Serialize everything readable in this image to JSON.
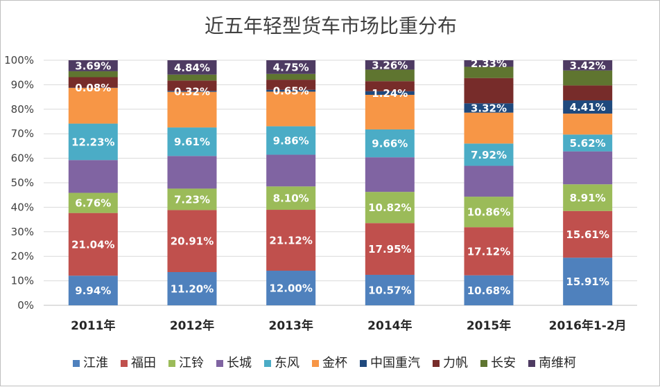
{
  "chart_data": {
    "type": "bar",
    "stacked": true,
    "percent_stacked": true,
    "title": "近五年轻型货车市场比重分布",
    "categories": [
      "2011年",
      "2012年",
      "2013年",
      "2014年",
      "2015年",
      "2016年1-2月"
    ],
    "y_tick_labels": [
      "0%",
      "10%",
      "20%",
      "30%",
      "40%",
      "50%",
      "60%",
      "70%",
      "80%",
      "90%",
      "100%"
    ],
    "ylim": [
      0,
      100
    ],
    "grid": true,
    "legend_position": "bottom",
    "series": [
      {
        "name": "江淮",
        "color": "#4f81bd",
        "values": [
          9.94,
          11.2,
          12.0,
          10.57,
          10.68,
          15.91
        ],
        "labels": [
          "9.94%",
          "11.20%",
          "12.00%",
          "10.57%",
          "10.68%",
          "15.91%"
        ]
      },
      {
        "name": "福田",
        "color": "#c0504d",
        "values": [
          21.04,
          20.91,
          21.12,
          17.95,
          17.12,
          15.61
        ],
        "labels": [
          "21.04%",
          "20.91%",
          "21.12%",
          "17.95%",
          "17.12%",
          "15.61%"
        ]
      },
      {
        "name": "江铃",
        "color": "#9bbb59",
        "values": [
          6.76,
          7.23,
          8.1,
          10.82,
          10.86,
          8.91
        ],
        "labels": [
          "6.76%",
          "7.23%",
          "8.10%",
          "10.82%",
          "10.86%",
          "8.91%"
        ]
      },
      {
        "name": "长城",
        "color": "#8064a2",
        "values": [
          11.0,
          11.0,
          11.0,
          12.0,
          11.0,
          11.0
        ],
        "labels": [
          "",
          "",
          "",
          "",
          "",
          ""
        ]
      },
      {
        "name": "东风",
        "color": "#4bacc6",
        "values": [
          12.23,
          9.61,
          9.86,
          9.66,
          7.92,
          5.62
        ],
        "labels": [
          "12.23%",
          "9.61%",
          "9.86%",
          "9.66%",
          "7.92%",
          "5.62%"
        ]
      },
      {
        "name": "金杯",
        "color": "#f79646",
        "values": [
          12.0,
          12.0,
          12.0,
          12.0,
          11.0,
          7.0
        ],
        "labels": [
          "",
          "",
          "",
          "",
          "",
          ""
        ]
      },
      {
        "name": "中国重汽",
        "color": "#1f497d",
        "values": [
          0.08,
          0.32,
          0.65,
          1.24,
          3.32,
          4.41
        ],
        "labels": [
          "0.08%",
          "0.32%",
          "0.65%",
          "1.24%",
          "3.32%",
          "4.41%"
        ]
      },
      {
        "name": "力帆",
        "color": "#772c2a",
        "values": [
          3.5,
          3.5,
          3.5,
          3.5,
          9.0,
          5.0
        ],
        "labels": [
          "",
          "",
          "",
          "",
          "",
          ""
        ]
      },
      {
        "name": "长安",
        "color": "#5f7530",
        "values": [
          2.0,
          2.0,
          2.0,
          4.0,
          4.0,
          5.0
        ],
        "labels": [
          "",
          "",
          "",
          "",
          "",
          ""
        ]
      },
      {
        "name": "南维柯",
        "color": "#4e3b62",
        "values": [
          3.69,
          4.84,
          4.75,
          3.26,
          2.33,
          3.42
        ],
        "labels": [
          "3.69%",
          "4.84%",
          "4.75%",
          "3.26%",
          "2.33%",
          "3.42%"
        ]
      }
    ]
  }
}
